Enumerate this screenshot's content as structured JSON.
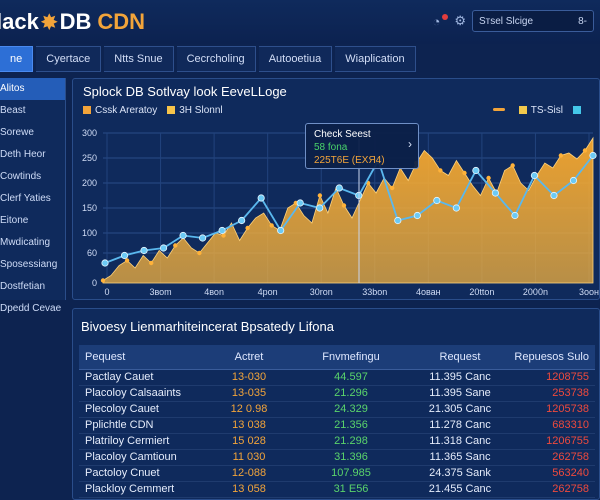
{
  "header": {
    "logo_part1": "lack",
    "logo_part2": "DB",
    "logo_part3": "CDN",
    "search_text": "Sтsel Slcige",
    "search_suffix": "8-"
  },
  "tabs": [
    {
      "label": "ne"
    },
    {
      "label": "Cyertace"
    },
    {
      "label": "Ntts Snue"
    },
    {
      "label": "Cecrcholing"
    },
    {
      "label": "Autooetiua"
    },
    {
      "label": "Wiaplication"
    }
  ],
  "sidebar": {
    "items": [
      {
        "label": "Alitos"
      },
      {
        "label": "Beast"
      },
      {
        "label": "Sorewe"
      },
      {
        "label": "Deth Heor"
      },
      {
        "label": "Cowtinds"
      },
      {
        "label": "Clerf Yaties"
      },
      {
        "label": "Eitone"
      },
      {
        "label": "Mwdicating"
      },
      {
        "label": "Sposessiang"
      },
      {
        "label": "Dostfetian"
      },
      {
        "label": "Dpedd Cevae"
      }
    ]
  },
  "chart": {
    "title": "Splock DB Sotlvay look EeveLLoge",
    "legend_left": [
      {
        "label": "Cssk Areratoy",
        "color": "#f2a43a"
      },
      {
        "label": "3Н Slonnl",
        "color": "#f7c44a"
      }
    ],
    "legend_right": [
      {
        "label": "",
        "color": "#f2a43a"
      },
      {
        "label": "TS-Sisl",
        "color": "#f2c94c"
      },
      {
        "label": "",
        "color": "#44c7e8"
      }
    ],
    "tooltip": {
      "title": "Check Seest",
      "line1": "58 fona",
      "line2": "225T6E (ЕХЯ4)"
    },
    "colors": {
      "area": "#f2a43a",
      "line": "#4fb4ea"
    }
  },
  "chart_data": {
    "type": "area",
    "title": "Splock DB Sotlvay look EeveLLoge",
    "x_ticks": [
      "0",
      "3воm",
      "4воn",
      "4роn",
      "30ron",
      "33bon",
      "4ован",
      "20tton",
      "2000n",
      "3оон"
    ],
    "y_ticks": [
      "0",
      "60",
      "100",
      "150",
      "200",
      "250",
      "300"
    ],
    "ylim": [
      0,
      300
    ],
    "series": [
      {
        "name": "Cssk Areratoy",
        "values": [
          5,
          15,
          35,
          45,
          30,
          55,
          40,
          65,
          50,
          75,
          90,
          70,
          60,
          80,
          100,
          95,
          120,
          85,
          110,
          130,
          140,
          115,
          105,
          150,
          160,
          135,
          120,
          175,
          140,
          190,
          155,
          130,
          165,
          200,
          180,
          210,
          190,
          230,
          205,
          240,
          265,
          250,
          225,
          215,
          245,
          220,
          195,
          175,
          210,
          180,
          225,
          235,
          200,
          185,
          215,
          240,
          230,
          255,
          260,
          248,
          265,
          290
        ]
      },
      {
        "name": "",
        "values": [
          40,
          55,
          65,
          70,
          95,
          90,
          105,
          125,
          170,
          105,
          160,
          150,
          190,
          175,
          245,
          125,
          135,
          165,
          150,
          225,
          180,
          135,
          215,
          175,
          205,
          255
        ]
      }
    ]
  },
  "table": {
    "title": "Bivoesy Lienmarhiteincerat Bpsatedy Lifona",
    "headers": [
      "Pequest",
      "Actret",
      "Fnvmefingu",
      "Request",
      "Repuesos Sulo"
    ],
    "rows": [
      [
        "Pactlay Cauet",
        "13-030",
        "44.597",
        "11.395 Canc",
        "1208755"
      ],
      [
        "Placoloy Calsaaints",
        "13-035",
        "21.296",
        "11.395 Sane",
        "253738"
      ],
      [
        "Plecoloy Cauet",
        "12 0.98",
        "24.329",
        "21.305 Canc",
        "1205738"
      ],
      [
        "Pplichtle CDN",
        "13 038",
        "21.356",
        "11.278 Canc",
        "683310"
      ],
      [
        "Platriloy Cermiert",
        "15 028",
        "21.298",
        "11.318 Canc",
        "1206755"
      ],
      [
        "Placoloy Camtioun",
        "11 030",
        "31.396",
        "11.365 Sanc",
        "262758"
      ],
      [
        "Pactoloy Cnuet",
        "12-088",
        "107.985",
        "24.375 Sank",
        "563240"
      ],
      [
        "Plackloy Cemmert",
        "13 058",
        "31 E56",
        "21.455 Canc",
        "262758"
      ]
    ]
  }
}
